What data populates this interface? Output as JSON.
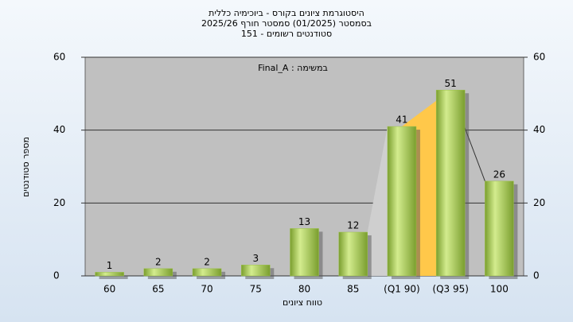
{
  "chart_data": {
    "type": "bar",
    "title": [
      "היסטוגרמת ציונים בקורס - ביוכימיה כללית",
      "בסמסטר (01/2025) סמסטר חורף 2025/26",
      "151 - סטודנטים רשומים"
    ],
    "annotation": "Final_A : במשימה",
    "x_label": "טווח ציונים",
    "y_label": "מספר סטודנטים",
    "categories": [
      "60",
      "65",
      "70",
      "75",
      "80",
      "85",
      "(Q1 90)",
      "(Q3 95)",
      "100"
    ],
    "values": [
      1,
      2,
      2,
      3,
      13,
      12,
      41,
      51,
      26
    ],
    "color": "#9cc24a",
    "ylim": [
      0,
      60
    ],
    "yticks": [
      0,
      20,
      40,
      60
    ],
    "y2lim": [
      0,
      60
    ],
    "y2ticks": [
      0,
      20,
      40,
      60
    ],
    "grid": true
  }
}
